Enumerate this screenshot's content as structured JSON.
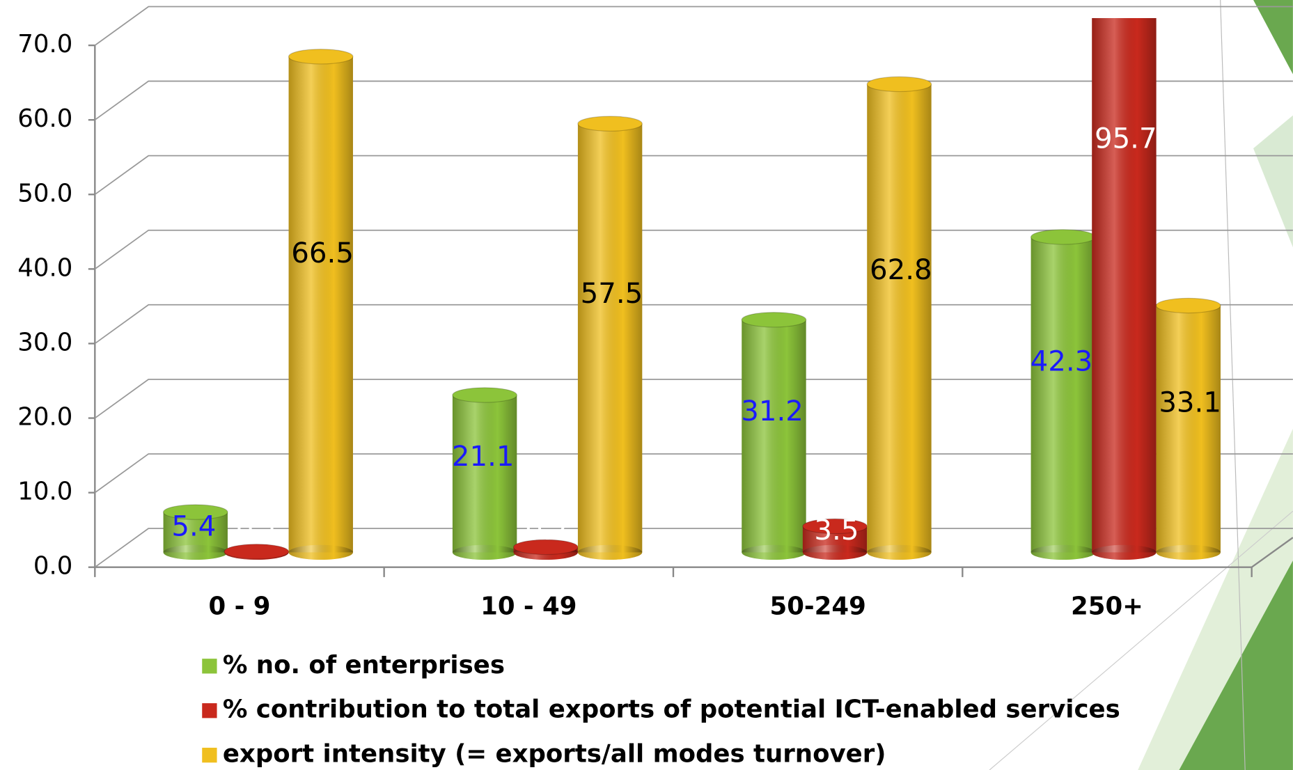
{
  "chart_data": {
    "type": "bar3d",
    "categories": [
      "0 - 9",
      "10 - 49",
      "50-249",
      "250+"
    ],
    "series": [
      {
        "name": "% no. of enterprises",
        "color": "#8cc43a",
        "label_color": "#1a1aff",
        "values": [
          5.4,
          21.1,
          31.2,
          42.3
        ]
      },
      {
        "name": "% contribution to total exports of potential ICT-enabled services",
        "color": "#c9291d",
        "label_color": "#ffffff",
        "values": [
          0.1,
          0.7,
          3.5,
          95.7
        ]
      },
      {
        "name": "export intensity (= exports/all modes turnover)",
        "color": "#f0bf1f",
        "label_color": "#000000",
        "values": [
          66.5,
          57.5,
          62.8,
          33.1
        ]
      }
    ],
    "ylim": [
      0,
      70
    ],
    "yticks": [
      {
        "value": 0,
        "label": "0.0"
      },
      {
        "value": 10,
        "label": "10.0"
      },
      {
        "value": 20,
        "label": "20.0"
      },
      {
        "value": 30,
        "label": "30.0"
      },
      {
        "value": 40,
        "label": "40.0"
      },
      {
        "value": 50,
        "label": "50.0"
      },
      {
        "value": 60,
        "label": "60.0"
      },
      {
        "value": 70,
        "label": "70.0"
      }
    ],
    "grid": true
  }
}
